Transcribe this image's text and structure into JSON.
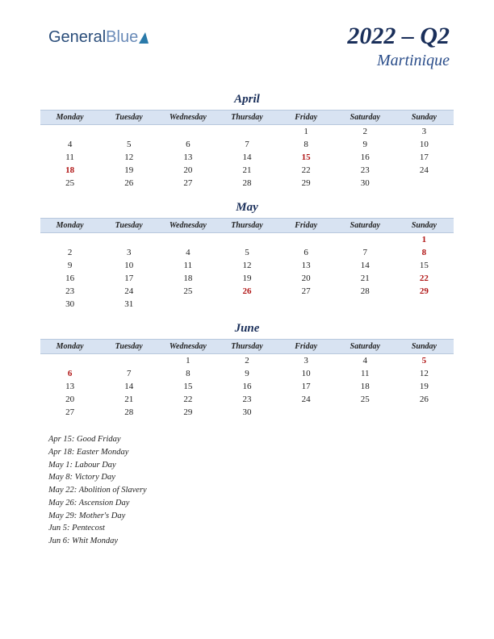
{
  "logo": {
    "part1": "General",
    "part2": "Blue"
  },
  "header": {
    "title": "2022 – Q2",
    "subtitle": "Martinique"
  },
  "weekdays": [
    "Monday",
    "Tuesday",
    "Wednesday",
    "Thursday",
    "Friday",
    "Saturday",
    "Sunday"
  ],
  "colors": {
    "header_bg": "#d8e3f2",
    "title_color": "#1a2f5a",
    "subtitle_color": "#2a4d8a",
    "holiday_color": "#b01515",
    "text_color": "#222222"
  },
  "months": [
    {
      "name": "April",
      "weeks": [
        [
          {
            "d": ""
          },
          {
            "d": ""
          },
          {
            "d": ""
          },
          {
            "d": ""
          },
          {
            "d": "1"
          },
          {
            "d": "2"
          },
          {
            "d": "3"
          }
        ],
        [
          {
            "d": "4"
          },
          {
            "d": "5"
          },
          {
            "d": "6"
          },
          {
            "d": "7"
          },
          {
            "d": "8"
          },
          {
            "d": "9"
          },
          {
            "d": "10"
          }
        ],
        [
          {
            "d": "11"
          },
          {
            "d": "12"
          },
          {
            "d": "13"
          },
          {
            "d": "14"
          },
          {
            "d": "15",
            "h": true
          },
          {
            "d": "16"
          },
          {
            "d": "17"
          }
        ],
        [
          {
            "d": "18",
            "h": true
          },
          {
            "d": "19"
          },
          {
            "d": "20"
          },
          {
            "d": "21"
          },
          {
            "d": "22"
          },
          {
            "d": "23"
          },
          {
            "d": "24"
          }
        ],
        [
          {
            "d": "25"
          },
          {
            "d": "26"
          },
          {
            "d": "27"
          },
          {
            "d": "28"
          },
          {
            "d": "29"
          },
          {
            "d": "30"
          },
          {
            "d": ""
          }
        ]
      ]
    },
    {
      "name": "May",
      "weeks": [
        [
          {
            "d": ""
          },
          {
            "d": ""
          },
          {
            "d": ""
          },
          {
            "d": ""
          },
          {
            "d": ""
          },
          {
            "d": ""
          },
          {
            "d": "1",
            "h": true
          }
        ],
        [
          {
            "d": "2"
          },
          {
            "d": "3"
          },
          {
            "d": "4"
          },
          {
            "d": "5"
          },
          {
            "d": "6"
          },
          {
            "d": "7"
          },
          {
            "d": "8",
            "h": true
          }
        ],
        [
          {
            "d": "9"
          },
          {
            "d": "10"
          },
          {
            "d": "11"
          },
          {
            "d": "12"
          },
          {
            "d": "13"
          },
          {
            "d": "14"
          },
          {
            "d": "15"
          }
        ],
        [
          {
            "d": "16"
          },
          {
            "d": "17"
          },
          {
            "d": "18"
          },
          {
            "d": "19"
          },
          {
            "d": "20"
          },
          {
            "d": "21"
          },
          {
            "d": "22",
            "h": true
          }
        ],
        [
          {
            "d": "23"
          },
          {
            "d": "24"
          },
          {
            "d": "25"
          },
          {
            "d": "26",
            "h": true
          },
          {
            "d": "27"
          },
          {
            "d": "28"
          },
          {
            "d": "29",
            "h": true
          }
        ],
        [
          {
            "d": "30"
          },
          {
            "d": "31"
          },
          {
            "d": ""
          },
          {
            "d": ""
          },
          {
            "d": ""
          },
          {
            "d": ""
          },
          {
            "d": ""
          }
        ]
      ]
    },
    {
      "name": "June",
      "weeks": [
        [
          {
            "d": ""
          },
          {
            "d": ""
          },
          {
            "d": "1"
          },
          {
            "d": "2"
          },
          {
            "d": "3"
          },
          {
            "d": "4"
          },
          {
            "d": "5",
            "h": true
          }
        ],
        [
          {
            "d": "6",
            "h": true
          },
          {
            "d": "7"
          },
          {
            "d": "8"
          },
          {
            "d": "9"
          },
          {
            "d": "10"
          },
          {
            "d": "11"
          },
          {
            "d": "12"
          }
        ],
        [
          {
            "d": "13"
          },
          {
            "d": "14"
          },
          {
            "d": "15"
          },
          {
            "d": "16"
          },
          {
            "d": "17"
          },
          {
            "d": "18"
          },
          {
            "d": "19"
          }
        ],
        [
          {
            "d": "20"
          },
          {
            "d": "21"
          },
          {
            "d": "22"
          },
          {
            "d": "23"
          },
          {
            "d": "24"
          },
          {
            "d": "25"
          },
          {
            "d": "26"
          }
        ],
        [
          {
            "d": "27"
          },
          {
            "d": "28"
          },
          {
            "d": "29"
          },
          {
            "d": "30"
          },
          {
            "d": ""
          },
          {
            "d": ""
          },
          {
            "d": ""
          }
        ]
      ]
    }
  ],
  "holidays": [
    "Apr 15: Good Friday",
    "Apr 18: Easter Monday",
    "May 1: Labour Day",
    "May 8: Victory Day",
    "May 22: Abolition of Slavery",
    "May 26: Ascension Day",
    "May 29: Mother's Day",
    "Jun 5: Pentecost",
    "Jun 6: Whit Monday"
  ]
}
